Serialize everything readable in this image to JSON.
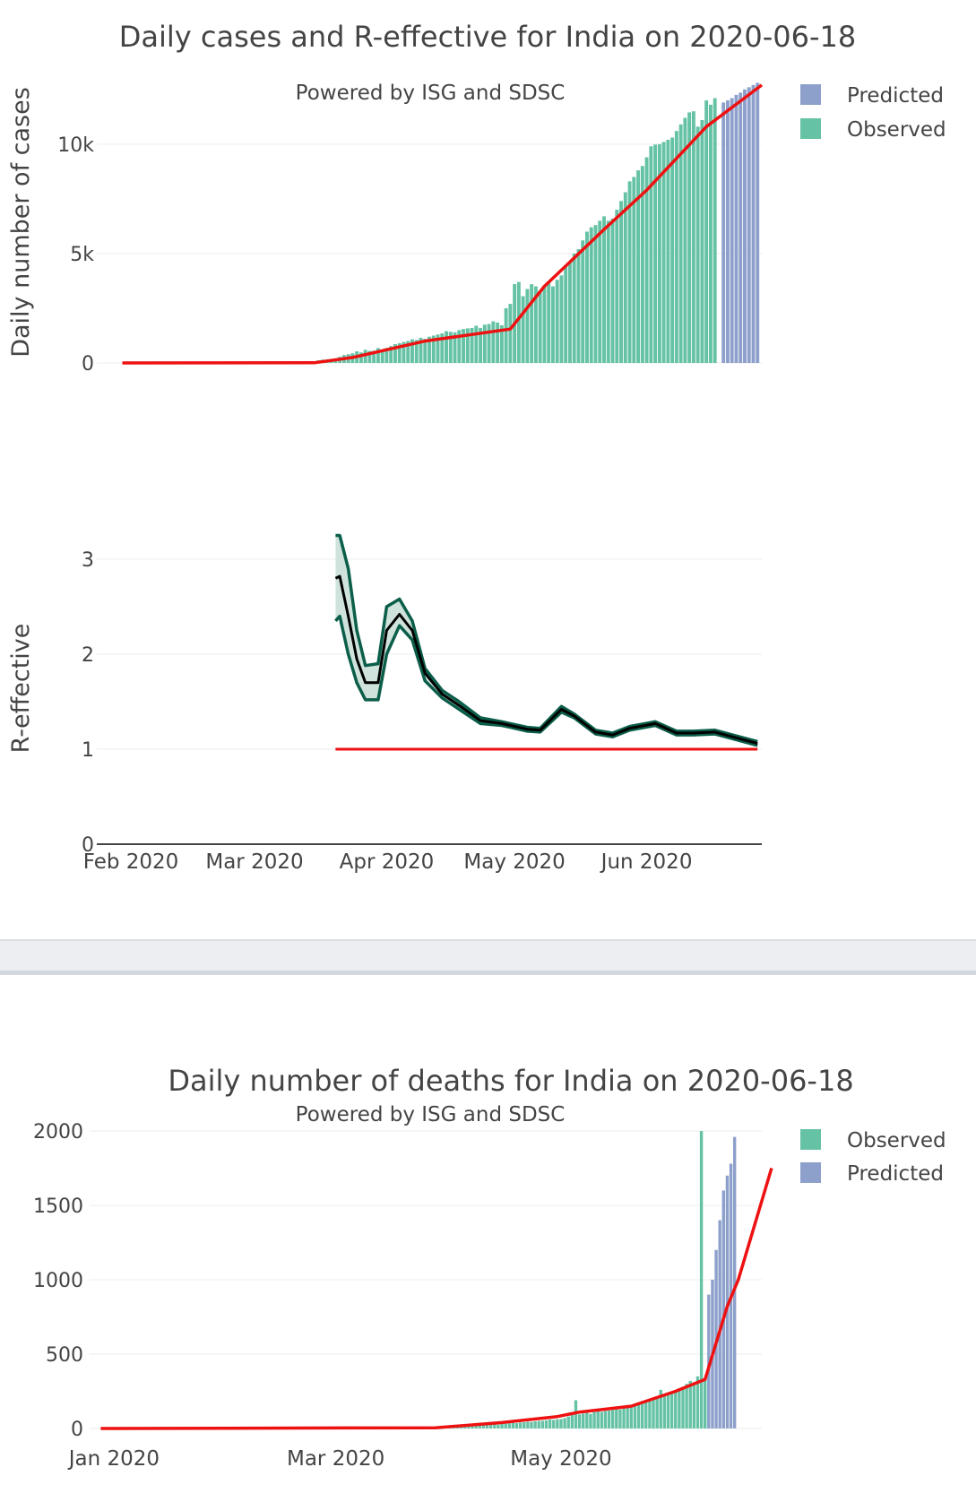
{
  "colors": {
    "observed": "#66c2a5",
    "predicted": "#8da0cb",
    "fit_line": "#ee1111",
    "reff_line": "#000000",
    "reff_band_edge": "#0b5e4a",
    "reff_band_fill": "#cfe3dc",
    "grid": "#eeeeee",
    "axis": "#444444"
  },
  "chart_data": [
    {
      "type": "bar",
      "title": "Daily cases and R-effective for India on 2020-06-18",
      "subtitle": "Powered by ISG and SDSC",
      "xlabel": "",
      "ylabel": "Daily number of cases",
      "ylim": [
        0,
        12900
      ],
      "yticks": [
        0,
        5000,
        10000
      ],
      "ytick_labels": [
        "0",
        "5k",
        "10k"
      ],
      "grid": true,
      "legend": [
        "Predicted",
        "Observed"
      ],
      "legend_position": "top-right",
      "x_start": "2020-01-30",
      "x_end": "2020-06-28",
      "series": [
        {
          "name": "Observed",
          "start": "2020-03-16",
          "values": [
            120,
            150,
            160,
            170,
            190,
            280,
            360,
            400,
            440,
            530,
            480,
            600,
            550,
            560,
            680,
            610,
            690,
            770,
            860,
            900,
            960,
            1000,
            1080,
            1050,
            1150,
            1100,
            1200,
            1250,
            1300,
            1350,
            1450,
            1420,
            1400,
            1500,
            1550,
            1580,
            1600,
            1700,
            1600,
            1750,
            1780,
            1900,
            1850,
            1720,
            2500,
            2700,
            3600,
            3700,
            3050,
            3380,
            3600,
            3500,
            3300,
            3500,
            3700,
            3500,
            3800,
            4000,
            4400,
            4600,
            5000,
            5200,
            5600,
            6000,
            6200,
            6300,
            6500,
            6700,
            6500,
            6600,
            7000,
            7400,
            7800,
            8300,
            8500,
            8800,
            9000,
            9400,
            9900,
            9980,
            10000,
            10100,
            10200,
            10300,
            10600,
            10900,
            11200,
            11450,
            11500,
            10800,
            11100,
            12000,
            11800,
            12100
          ]
        },
        {
          "name": "Predicted",
          "start": "2020-06-19",
          "values": [
            11900,
            12000,
            12100,
            12250,
            12350,
            12500,
            12600,
            12700,
            12800
          ]
        }
      ],
      "fit_line": {
        "name": "Fit",
        "dates": [
          "2020-01-30",
          "2020-03-15",
          "2020-03-24",
          "2020-04-10",
          "2020-04-30",
          "2020-05-08",
          "2020-05-22",
          "2020-06-01",
          "2020-06-15",
          "2020-06-28"
        ],
        "values": [
          0,
          10,
          250,
          1000,
          1550,
          3500,
          6100,
          7900,
          10800,
          12700
        ]
      }
    },
    {
      "type": "line",
      "title": "",
      "xlabel": "",
      "ylabel": "R-effective",
      "ylim": [
        0,
        3.3
      ],
      "yticks": [
        0,
        1,
        2,
        3
      ],
      "ytick_labels": [
        "0",
        "1",
        "2",
        "3"
      ],
      "xtick_labels": [
        "Feb 2020",
        "Mar 2020",
        "Apr 2020",
        "May 2020",
        "Jun 2020"
      ],
      "xtick_dates": [
        "2020-02-01",
        "2020-03-01",
        "2020-04-01",
        "2020-05-01",
        "2020-06-01"
      ],
      "grid": true,
      "reference_line": {
        "value": 1,
        "from": "2020-03-20",
        "to": "2020-06-27"
      },
      "dates": [
        "2020-03-20",
        "2020-03-21",
        "2020-03-23",
        "2020-03-25",
        "2020-03-27",
        "2020-03-30",
        "2020-04-01",
        "2020-04-04",
        "2020-04-07",
        "2020-04-10",
        "2020-04-14",
        "2020-04-18",
        "2020-04-23",
        "2020-04-28",
        "2020-04-30",
        "2020-05-04",
        "2020-05-07",
        "2020-05-12",
        "2020-05-15",
        "2020-05-20",
        "2020-05-24",
        "2020-05-28",
        "2020-06-03",
        "2020-06-08",
        "2020-06-12",
        "2020-06-17",
        "2020-06-22",
        "2020-06-27"
      ],
      "r_mean": [
        2.8,
        2.82,
        2.4,
        1.95,
        1.7,
        1.7,
        2.25,
        2.42,
        2.25,
        1.8,
        1.58,
        1.46,
        1.3,
        1.27,
        1.25,
        1.21,
        1.2,
        1.42,
        1.35,
        1.18,
        1.15,
        1.22,
        1.27,
        1.17,
        1.17,
        1.18,
        1.12,
        1.06
      ],
      "r_upper": [
        3.25,
        3.25,
        2.9,
        2.25,
        1.88,
        1.9,
        2.5,
        2.58,
        2.35,
        1.85,
        1.62,
        1.5,
        1.33,
        1.29,
        1.27,
        1.23,
        1.22,
        1.45,
        1.37,
        1.2,
        1.17,
        1.24,
        1.29,
        1.19,
        1.19,
        1.2,
        1.14,
        1.08
      ],
      "r_lower": [
        2.35,
        2.4,
        2.0,
        1.7,
        1.52,
        1.52,
        2.0,
        2.3,
        2.15,
        1.72,
        1.54,
        1.42,
        1.27,
        1.25,
        1.23,
        1.19,
        1.18,
        1.39,
        1.33,
        1.16,
        1.13,
        1.2,
        1.25,
        1.15,
        1.15,
        1.16,
        1.1,
        1.04
      ]
    },
    {
      "type": "bar",
      "title": "Daily number of deaths for India on 2020-06-18",
      "subtitle": "Powered by ISG and SDSC",
      "xlabel": "",
      "ylabel": "",
      "ylim": [
        0,
        2000
      ],
      "yticks": [
        0,
        500,
        1000,
        1500,
        2000
      ],
      "ytick_labels": [
        "0",
        "500",
        "1000",
        "1500",
        "2000"
      ],
      "xtick_labels": [
        "Jan 2020",
        "Mar 2020",
        "May 2020"
      ],
      "xtick_dates": [
        "2020-01-01",
        "2020-03-01",
        "2020-05-01"
      ],
      "grid": true,
      "legend": [
        "Observed",
        "Predicted"
      ],
      "legend_position": "top-right",
      "x_start": "2020-01-01",
      "x_end": "2020-06-28",
      "series": [
        {
          "name": "Observed",
          "start": "2020-04-01",
          "values": [
            5,
            8,
            10,
            12,
            15,
            18,
            20,
            22,
            20,
            25,
            24,
            28,
            30,
            26,
            30,
            32,
            35,
            38,
            36,
            40,
            42,
            45,
            44,
            48,
            50,
            52,
            55,
            60,
            58,
            62,
            64,
            70,
            80,
            90,
            190,
            95,
            100,
            105,
            98,
            110,
            115,
            112,
            118,
            120,
            125,
            130,
            128,
            135,
            140,
            145,
            150,
            160,
            170,
            180,
            190,
            200,
            210,
            260,
            220,
            230,
            240,
            250,
            270,
            280,
            300,
            320,
            310,
            350,
            2000,
            330,
            345
          ]
        },
        {
          "name": "Predicted",
          "start": "2020-06-10",
          "values": [
            900,
            1000,
            1200,
            1400,
            1600,
            1700,
            1780,
            1960
          ]
        }
      ],
      "fit_line": {
        "name": "Fit",
        "dates": [
          "2020-01-01",
          "2020-03-28",
          "2020-04-15",
          "2020-04-30",
          "2020-05-06",
          "2020-05-20",
          "2020-06-01",
          "2020-06-09",
          "2020-06-15",
          "2020-06-18",
          "2020-06-27"
        ],
        "values": [
          0,
          5,
          40,
          80,
          110,
          150,
          250,
          330,
          820,
          1000,
          1750
        ]
      }
    }
  ]
}
